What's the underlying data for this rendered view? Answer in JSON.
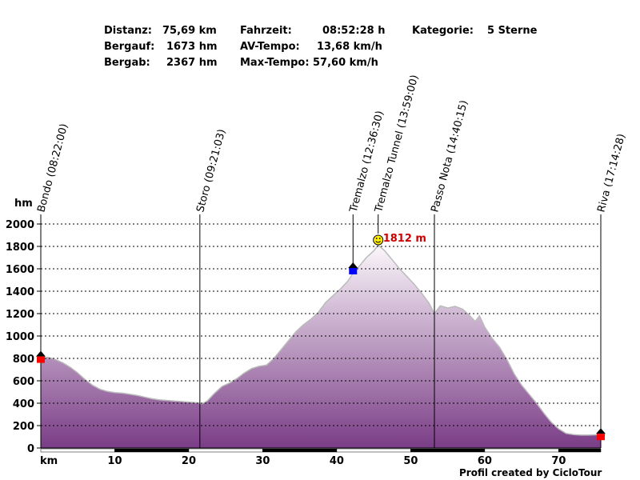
{
  "summary": {
    "distanz_label": "Distanz:",
    "distanz_value": "75,69 km",
    "bergauf_label": "Bergauf:",
    "bergauf_value": "1673 hm",
    "bergab_label": "Bergab:",
    "bergab_value": "2367 hm",
    "fahrzeit_label": "Fahrzeit:",
    "fahrzeit_value": "08:52:28 h",
    "avtempo_label": "AV-Tempo:",
    "avtempo_value": "13,68 km/h",
    "maxtempo_label": "Max-Tempo:",
    "maxtempo_value": "57,60 km/h",
    "kategorie_label": "Kategorie:",
    "kategorie_value": "5 Sterne"
  },
  "credit": "Profil created by CicloTour",
  "chart_data": {
    "type": "area",
    "ylabel": "hm",
    "xlabel": "km",
    "ylim": [
      0,
      2000
    ],
    "xlim": [
      0,
      75.69
    ],
    "yticks": [
      0,
      200,
      400,
      600,
      800,
      1000,
      1200,
      1400,
      1600,
      1800,
      2000
    ],
    "xticks": [
      10,
      20,
      30,
      40,
      50,
      60,
      70
    ],
    "grid": true,
    "fill_top_color": "#fbf7fb",
    "fill_bottom_color": "#7a3d86",
    "outline_color": "#bbbbbb",
    "max_label": "1812 m",
    "max_label_color": "#cc0000",
    "profile": [
      [
        0,
        800
      ],
      [
        1,
        810
      ],
      [
        2,
        790
      ],
      [
        3,
        760
      ],
      [
        4,
        720
      ],
      [
        5,
        670
      ],
      [
        6,
        610
      ],
      [
        7,
        560
      ],
      [
        8,
        525
      ],
      [
        9,
        505
      ],
      [
        10,
        495
      ],
      [
        11,
        490
      ],
      [
        12,
        480
      ],
      [
        13,
        470
      ],
      [
        14,
        455
      ],
      [
        15,
        440
      ],
      [
        16,
        430
      ],
      [
        17,
        425
      ],
      [
        18,
        420
      ],
      [
        19,
        415
      ],
      [
        20,
        410
      ],
      [
        21,
        405
      ],
      [
        21.8,
        395
      ],
      [
        22.5,
        420
      ],
      [
        23.5,
        490
      ],
      [
        24.5,
        550
      ],
      [
        25.5,
        580
      ],
      [
        26.5,
        620
      ],
      [
        27.5,
        670
      ],
      [
        28.5,
        710
      ],
      [
        29.5,
        730
      ],
      [
        30.5,
        740
      ],
      [
        31.5,
        800
      ],
      [
        32.5,
        880
      ],
      [
        33.5,
        960
      ],
      [
        34.5,
        1040
      ],
      [
        35.5,
        1100
      ],
      [
        36.5,
        1150
      ],
      [
        37.5,
        1210
      ],
      [
        38.5,
        1300
      ],
      [
        39.5,
        1360
      ],
      [
        40.5,
        1420
      ],
      [
        41.5,
        1490
      ],
      [
        42.2,
        1560
      ],
      [
        43,
        1620
      ],
      [
        44,
        1700
      ],
      [
        45,
        1760
      ],
      [
        45.6,
        1812
      ],
      [
        46.5,
        1760
      ],
      [
        47.5,
        1680
      ],
      [
        48.5,
        1600
      ],
      [
        49.5,
        1530
      ],
      [
        50.5,
        1460
      ],
      [
        51.5,
        1380
      ],
      [
        52.5,
        1290
      ],
      [
        53.2,
        1200
      ],
      [
        54,
        1270
      ],
      [
        55,
        1250
      ],
      [
        56,
        1265
      ],
      [
        57,
        1240
      ],
      [
        58,
        1180
      ],
      [
        58.7,
        1130
      ],
      [
        59.3,
        1180
      ],
      [
        60,
        1080
      ],
      [
        61,
        980
      ],
      [
        62,
        900
      ],
      [
        63,
        790
      ],
      [
        64,
        660
      ],
      [
        65,
        560
      ],
      [
        66,
        480
      ],
      [
        67,
        400
      ],
      [
        68,
        310
      ],
      [
        69,
        230
      ],
      [
        70,
        170
      ],
      [
        71,
        130
      ],
      [
        72,
        120
      ],
      [
        73,
        115
      ],
      [
        74,
        115
      ],
      [
        75.69,
        120
      ]
    ],
    "waypoints": [
      {
        "label": "Bondo (08:22:00)",
        "km": 0,
        "marker": "home"
      },
      {
        "label": "Storo (09:21:03)",
        "km": 21.5,
        "marker": "none"
      },
      {
        "label": "Tremalzo (12:36:30)",
        "km": 42.2,
        "marker": "blue"
      },
      {
        "label": "Tremalzo Tunnel (13:59:00)",
        "km": 45.6,
        "marker": "smiley"
      },
      {
        "label": "Passo Nota (14:40:15)",
        "km": 53.2,
        "marker": "none"
      },
      {
        "label": "Riva (17:14:28)",
        "km": 75.69,
        "marker": "home"
      }
    ]
  }
}
